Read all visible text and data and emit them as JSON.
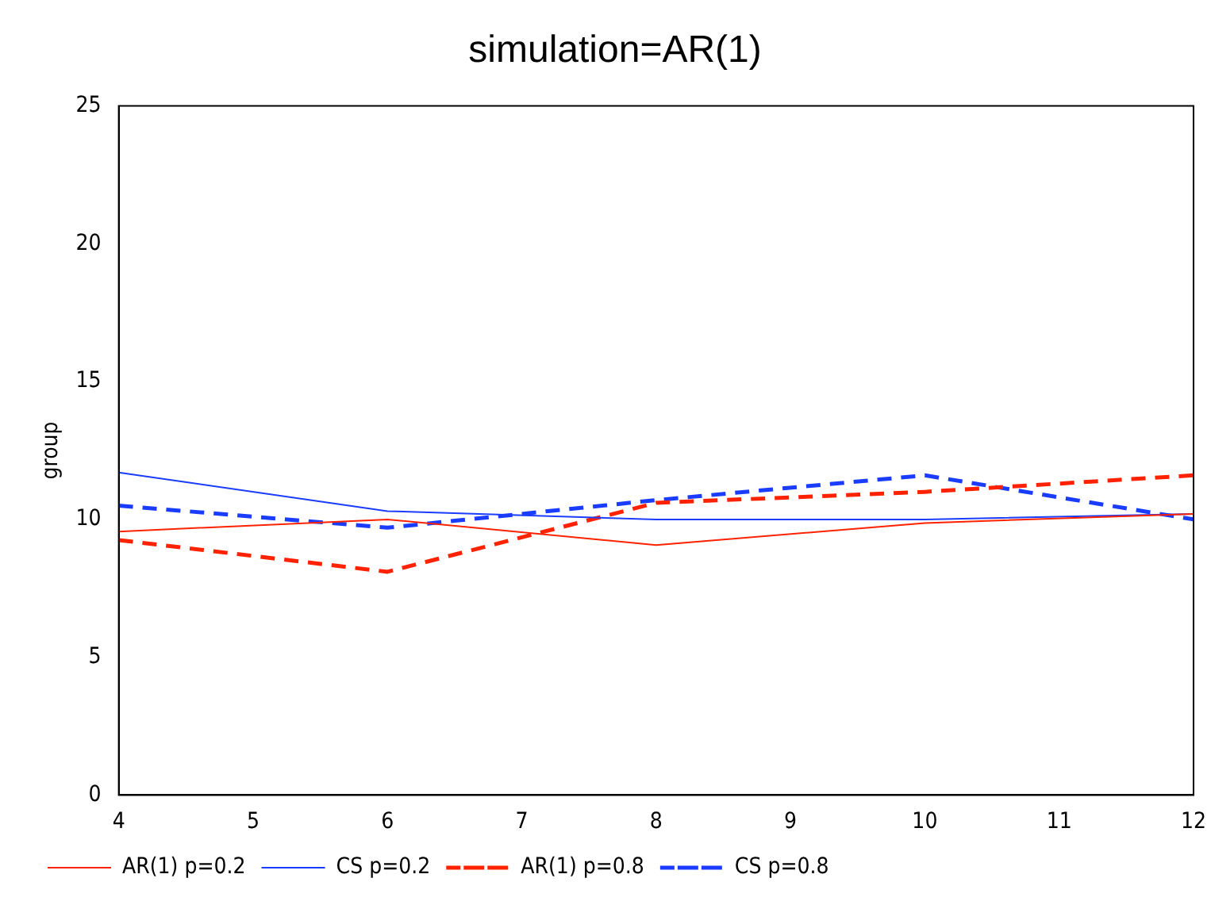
{
  "chart_data": {
    "type": "line",
    "title": "simulation=AR(1)",
    "ylabel": "group",
    "x": [
      4,
      6,
      8,
      10,
      12
    ],
    "series": [
      {
        "name": "AR(1) p=0.2",
        "color": "#ff2200",
        "values": [
          9.56,
          10.0,
          9.07,
          9.87,
          10.2
        ],
        "line_style": "solid"
      },
      {
        "name": "CS p=0.2",
        "color": "#1a3cff",
        "values": [
          11.7,
          10.3,
          10.0,
          10.0,
          10.2
        ],
        "line_style": "solid"
      },
      {
        "name": "AR(1) p=0.8",
        "color": "#ff2200",
        "values": [
          9.25,
          8.1,
          10.6,
          11.0,
          11.6
        ],
        "line_style": "dashed"
      },
      {
        "name": "CS p=0.8",
        "color": "#1a3cff",
        "values": [
          10.5,
          9.7,
          10.7,
          11.6,
          10.0
        ],
        "line_style": "dashed"
      }
    ],
    "xlim": [
      4,
      12
    ],
    "xticks": [
      4,
      5,
      6,
      7,
      8,
      9,
      10,
      11,
      12
    ],
    "ylim": [
      0,
      25
    ],
    "yticks": [
      0,
      5,
      10,
      15,
      20,
      25
    ],
    "grid": false,
    "legend": "bottom",
    "marker": "none"
  }
}
